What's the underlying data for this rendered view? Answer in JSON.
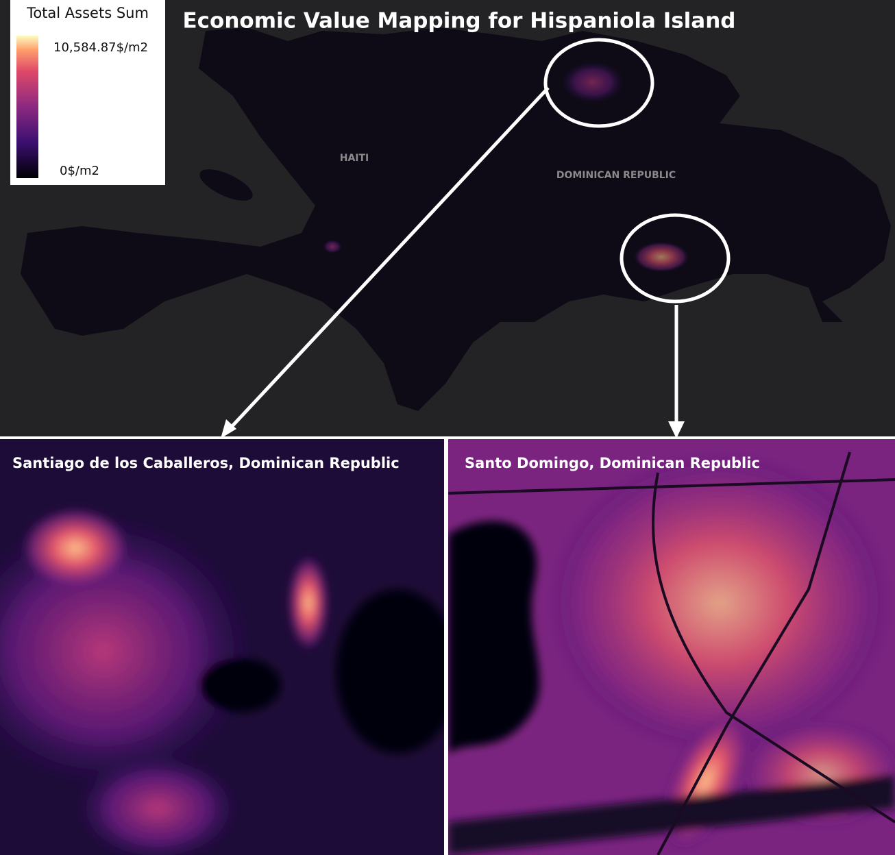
{
  "title": "Economic Value Mapping for Hispaniola Island",
  "legend": {
    "title": "Total Assets Sum",
    "max_label": "10,584.87$/m2",
    "min_label": "0$/m2"
  },
  "map_labels": [
    "HAITI",
    "DOMINICAN REPUBLIC"
  ],
  "panels": [
    {
      "title": "Santiago de los Caballeros, Dominican Republic"
    },
    {
      "title": "Santo Domingo, Dominican Republic"
    }
  ]
}
